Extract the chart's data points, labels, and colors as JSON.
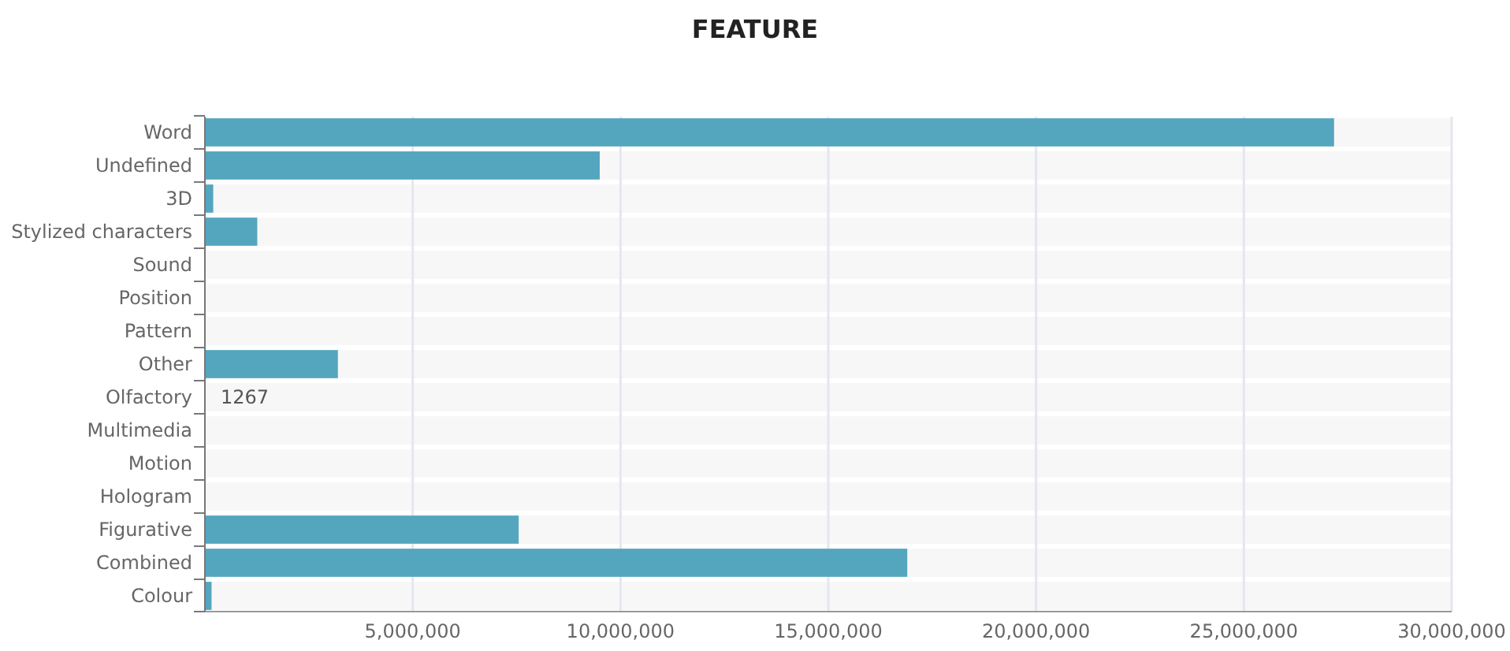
{
  "chart_data": {
    "type": "bar",
    "orientation": "horizontal",
    "title": "FEATURE",
    "categories": [
      "Word",
      "Undefined",
      "3D",
      "Stylized characters",
      "Sound",
      "Position",
      "Pattern",
      "Other",
      "Olfactory",
      "Multimedia",
      "Motion",
      "Hologram",
      "Figurative",
      "Combined",
      "Colour"
    ],
    "values": [
      27170000,
      9500000,
      200000,
      1260000,
      0,
      0,
      0,
      3200000,
      1267,
      0,
      0,
      0,
      7550000,
      16900000,
      160000
    ],
    "value_labels": [
      null,
      null,
      null,
      null,
      null,
      null,
      null,
      null,
      "1267",
      null,
      null,
      null,
      null,
      null,
      null
    ],
    "color": "#54a6be",
    "xlim": [
      0,
      30000000
    ],
    "xticks": [
      {
        "value": 5000000,
        "label": "5,000,000"
      },
      {
        "value": 10000000,
        "label": "10,000,000"
      },
      {
        "value": 15000000,
        "label": "15,000,000"
      },
      {
        "value": 20000000,
        "label": "20,000,000"
      },
      {
        "value": 25000000,
        "label": "25,000,000"
      },
      {
        "value": 30000000,
        "label": "30,000,000"
      }
    ],
    "grid": "x"
  }
}
